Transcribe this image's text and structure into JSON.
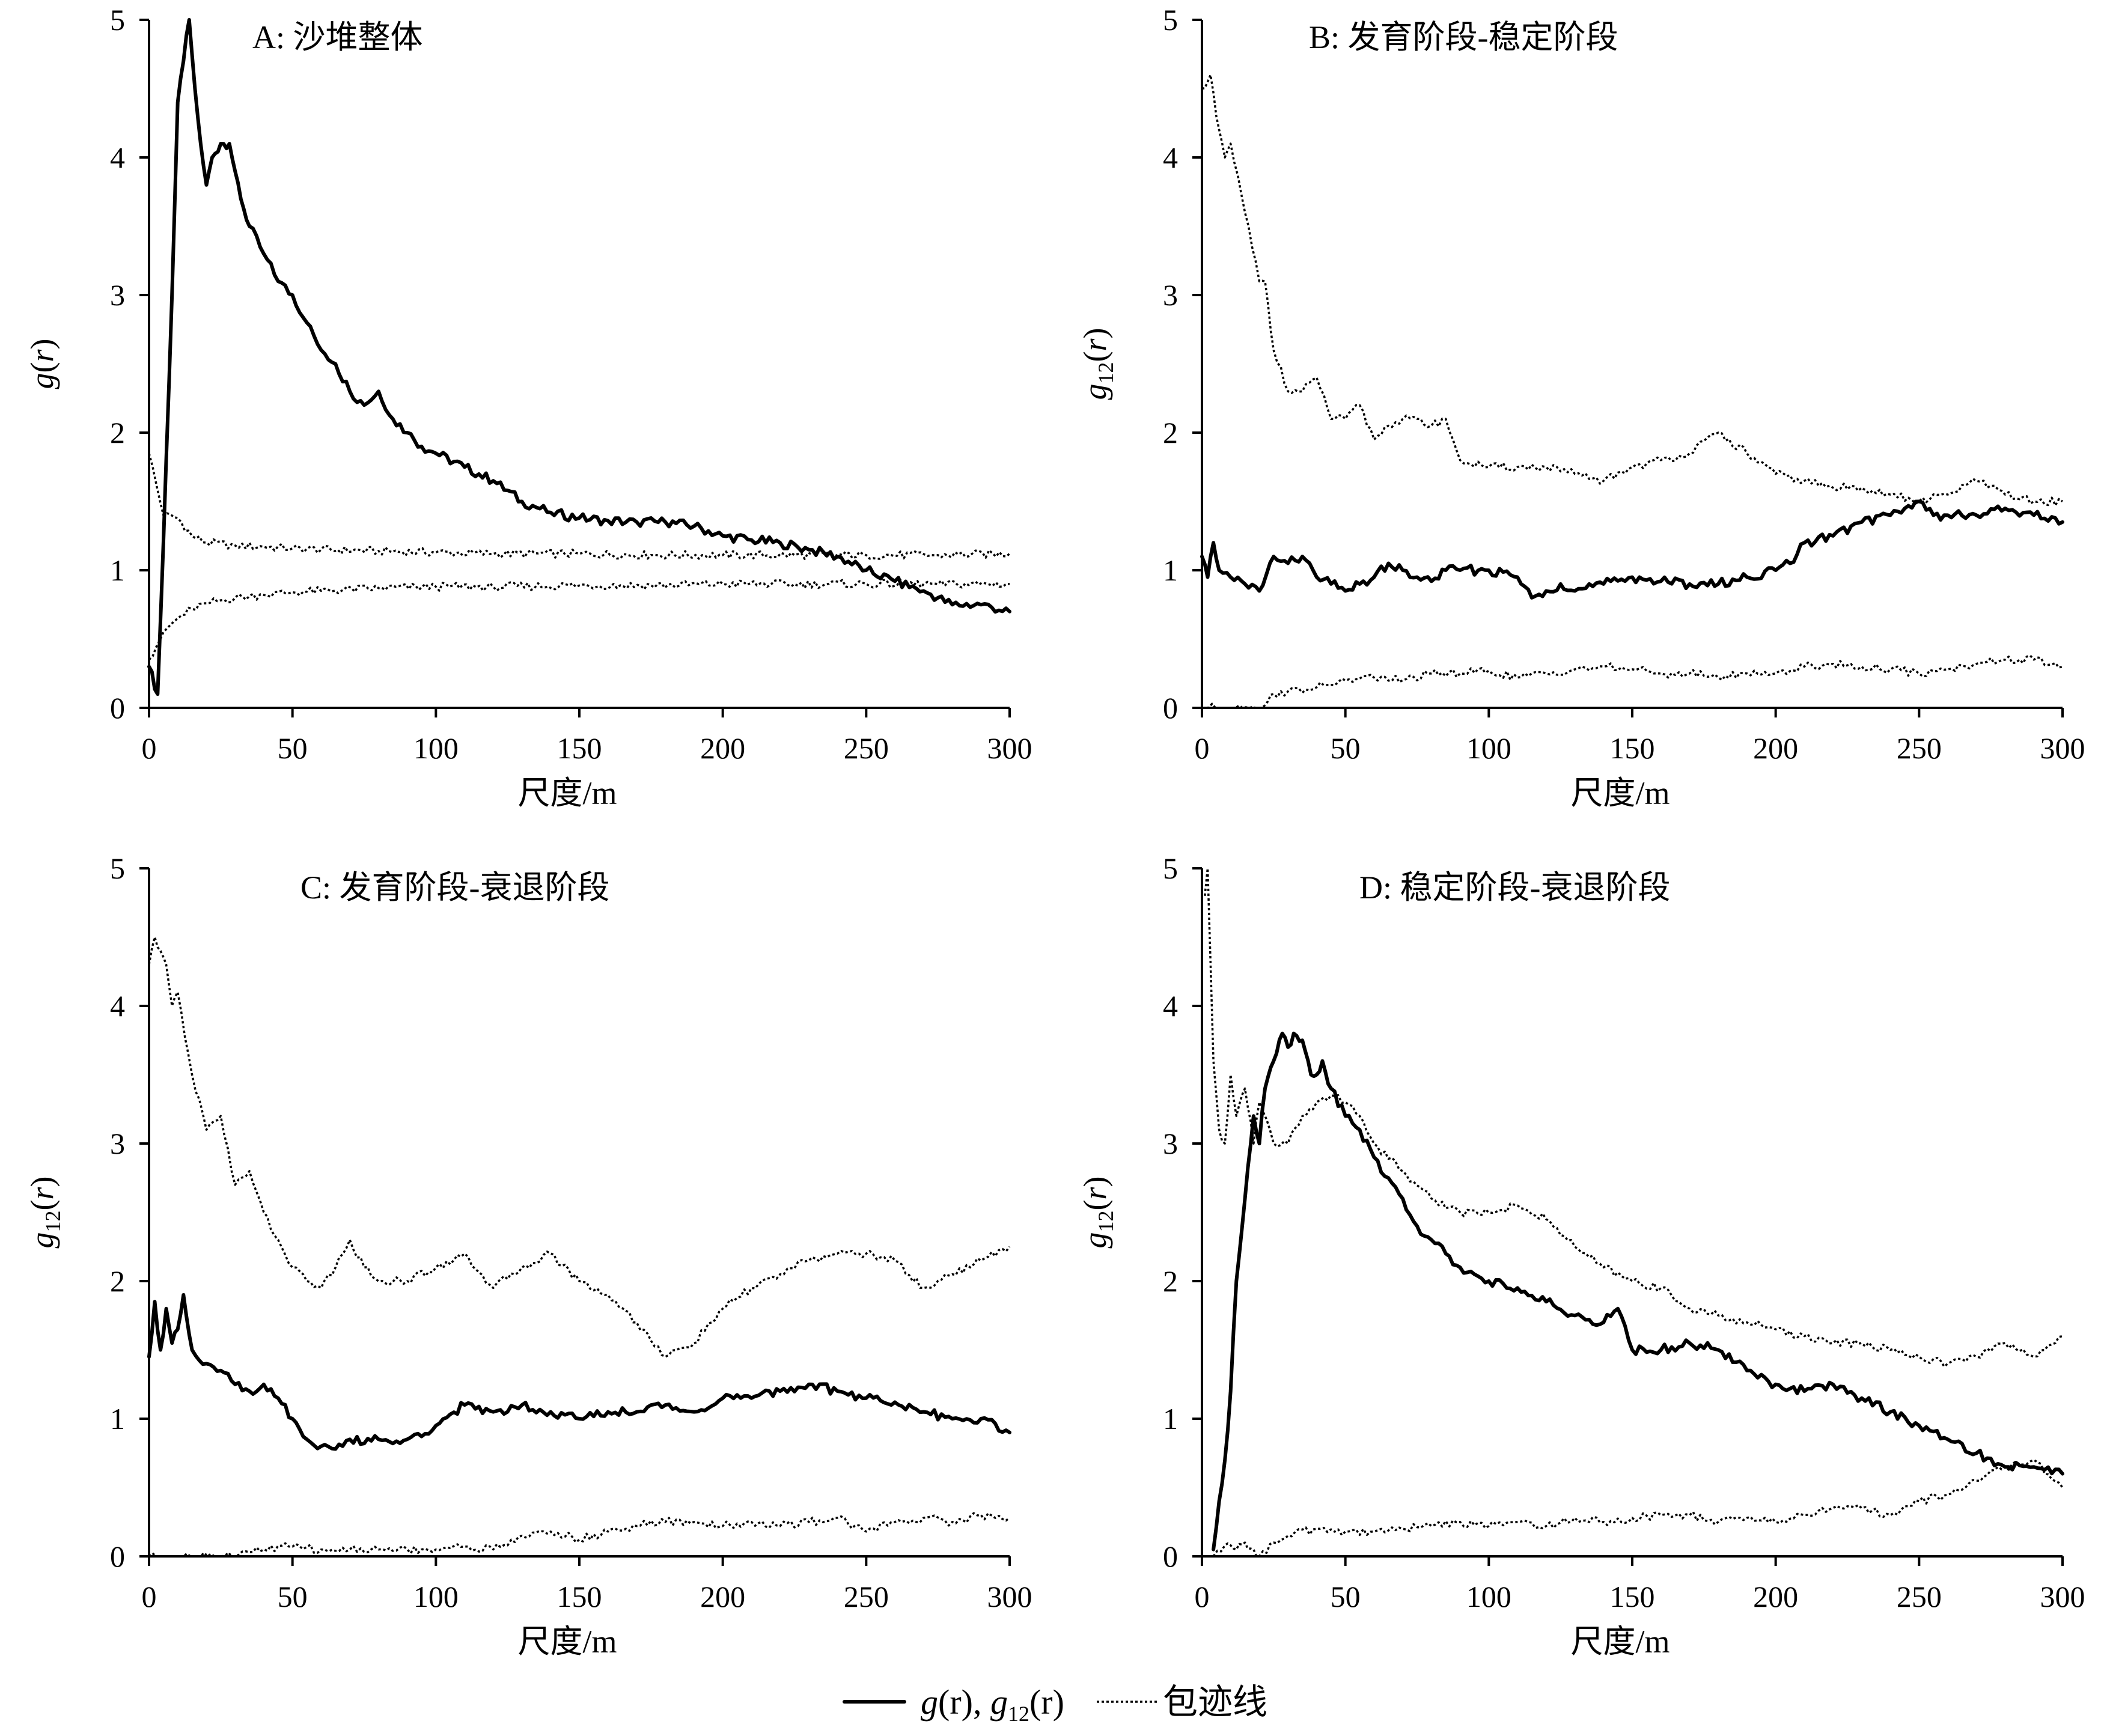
{
  "chart_data": [
    {
      "type": "line",
      "title": "A: 沙堆整体",
      "xlabel": "尺度/m",
      "ylabel": "g(r)",
      "ylabel_parts": {
        "base": "g",
        "sub": "",
        "arg": "(r)"
      },
      "xlim": [
        0,
        300
      ],
      "ylim": [
        0,
        5
      ],
      "xticks": [
        0,
        50,
        100,
        150,
        200,
        250,
        300
      ],
      "yticks": [
        0,
        1,
        2,
        3,
        4,
        5
      ],
      "series": [
        {
          "style": "solid",
          "x": [
            0,
            3,
            5,
            8,
            10,
            12,
            14,
            16,
            18,
            20,
            22,
            25,
            28,
            30,
            32,
            35,
            40,
            45,
            50,
            55,
            60,
            65,
            70,
            75,
            80,
            85,
            90,
            95,
            100,
            110,
            120,
            130,
            140,
            150,
            160,
            170,
            180,
            190,
            200,
            210,
            220,
            230,
            240,
            250,
            260,
            270,
            280,
            290,
            300
          ],
          "y": [
            0.3,
            0.1,
            1.2,
            3.0,
            4.4,
            4.7,
            5.0,
            4.5,
            4.1,
            3.8,
            4.0,
            4.1,
            4.1,
            3.9,
            3.7,
            3.5,
            3.3,
            3.1,
            3.0,
            2.8,
            2.6,
            2.5,
            2.3,
            2.2,
            2.3,
            2.1,
            2.0,
            1.9,
            1.85,
            1.75,
            1.65,
            1.5,
            1.42,
            1.38,
            1.36,
            1.35,
            1.35,
            1.32,
            1.25,
            1.22,
            1.2,
            1.15,
            1.1,
            1.0,
            0.92,
            0.85,
            0.75,
            0.75,
            0.7
          ]
        },
        {
          "style": "dotted",
          "x": [
            0,
            5,
            10,
            15,
            20,
            30,
            40,
            50,
            60,
            80,
            100,
            120,
            150,
            175,
            200,
            225,
            250,
            275,
            300
          ],
          "y": [
            1.85,
            1.4,
            1.38,
            1.25,
            1.2,
            1.18,
            1.17,
            1.16,
            1.15,
            1.14,
            1.13,
            1.12,
            1.12,
            1.11,
            1.11,
            1.11,
            1.11,
            1.11,
            1.12
          ]
        },
        {
          "style": "dotted",
          "x": [
            0,
            5,
            10,
            15,
            20,
            30,
            40,
            50,
            60,
            80,
            100,
            120,
            150,
            175,
            200,
            225,
            250,
            275,
            300
          ],
          "y": [
            0.35,
            0.55,
            0.65,
            0.72,
            0.76,
            0.8,
            0.82,
            0.84,
            0.85,
            0.87,
            0.88,
            0.88,
            0.89,
            0.89,
            0.9,
            0.9,
            0.9,
            0.9,
            0.9
          ]
        }
      ]
    },
    {
      "type": "line",
      "title": "B: 发育阶段-稳定阶段",
      "xlabel": "尺度/m",
      "ylabel": "g12(r)",
      "ylabel_parts": {
        "base": "g",
        "sub": "12",
        "arg": "(r)"
      },
      "xlim": [
        0,
        300
      ],
      "ylim": [
        0,
        5
      ],
      "xticks": [
        0,
        50,
        100,
        150,
        200,
        250,
        300
      ],
      "yticks": [
        0,
        1,
        2,
        3,
        4,
        5
      ],
      "series": [
        {
          "style": "solid",
          "x": [
            0,
            2,
            4,
            6,
            10,
            15,
            20,
            25,
            30,
            35,
            40,
            45,
            50,
            55,
            60,
            65,
            70,
            75,
            80,
            85,
            90,
            100,
            110,
            115,
            120,
            125,
            130,
            140,
            150,
            160,
            170,
            180,
            190,
            200,
            205,
            210,
            220,
            230,
            240,
            245,
            250,
            255,
            260,
            270,
            280,
            290,
            300
          ],
          "y": [
            1.1,
            0.95,
            1.2,
            1.0,
            0.95,
            0.9,
            0.85,
            1.1,
            1.05,
            1.1,
            0.95,
            0.9,
            0.85,
            0.9,
            0.95,
            1.05,
            1.0,
            0.95,
            0.92,
            1.0,
            1.0,
            1.0,
            0.95,
            0.8,
            0.85,
            0.9,
            0.85,
            0.9,
            0.95,
            0.92,
            0.9,
            0.9,
            0.95,
            1.0,
            1.05,
            1.2,
            1.25,
            1.35,
            1.4,
            1.45,
            1.5,
            1.4,
            1.4,
            1.4,
            1.45,
            1.4,
            1.35
          ]
        },
        {
          "style": "dotted",
          "x": [
            0,
            3,
            5,
            8,
            10,
            15,
            20,
            22,
            25,
            30,
            35,
            40,
            45,
            50,
            55,
            60,
            65,
            70,
            75,
            80,
            85,
            90,
            100,
            110,
            120,
            130,
            140,
            150,
            160,
            170,
            180,
            190,
            200,
            210,
            220,
            230,
            240,
            250,
            260,
            270,
            280,
            290,
            300
          ],
          "y": [
            4.5,
            4.6,
            4.3,
            4.0,
            4.1,
            3.6,
            3.1,
            3.1,
            2.6,
            2.3,
            2.3,
            2.4,
            2.1,
            2.1,
            2.2,
            1.95,
            2.05,
            2.1,
            2.1,
            2.05,
            2.1,
            1.8,
            1.75,
            1.75,
            1.75,
            1.7,
            1.65,
            1.75,
            1.8,
            1.85,
            2.0,
            1.85,
            1.7,
            1.65,
            1.6,
            1.6,
            1.55,
            1.5,
            1.55,
            1.65,
            1.55,
            1.5,
            1.5
          ]
        },
        {
          "style": "dotted",
          "x": [
            0,
            20,
            22,
            25,
            30,
            40,
            50,
            60,
            70,
            80,
            90,
            100,
            110,
            120,
            130,
            140,
            150,
            160,
            170,
            180,
            190,
            200,
            210,
            220,
            230,
            240,
            250,
            260,
            270,
            280,
            290,
            300
          ],
          "y": [
            0,
            0,
            0.02,
            0.1,
            0.12,
            0.15,
            0.2,
            0.22,
            0.2,
            0.25,
            0.25,
            0.27,
            0.22,
            0.25,
            0.28,
            0.3,
            0.28,
            0.25,
            0.25,
            0.22,
            0.25,
            0.25,
            0.3,
            0.32,
            0.3,
            0.28,
            0.25,
            0.28,
            0.32,
            0.35,
            0.35,
            0.3
          ]
        }
      ]
    },
    {
      "type": "line",
      "title": "C: 发育阶段-衰退阶段",
      "xlabel": "尺度/m",
      "ylabel": "g12(r)",
      "ylabel_parts": {
        "base": "g",
        "sub": "12",
        "arg": "(r)"
      },
      "xlim": [
        0,
        300
      ],
      "ylim": [
        0,
        5
      ],
      "xticks": [
        0,
        50,
        100,
        150,
        200,
        250,
        300
      ],
      "yticks": [
        0,
        1,
        2,
        3,
        4,
        5
      ],
      "series": [
        {
          "style": "solid",
          "x": [
            0,
            2,
            4,
            6,
            8,
            10,
            12,
            15,
            20,
            25,
            30,
            35,
            40,
            45,
            50,
            55,
            60,
            65,
            70,
            75,
            80,
            85,
            90,
            100,
            110,
            120,
            130,
            140,
            150,
            160,
            170,
            180,
            190,
            200,
            210,
            220,
            230,
            240,
            250,
            260,
            270,
            280,
            290,
            300
          ],
          "y": [
            1.45,
            1.85,
            1.5,
            1.8,
            1.55,
            1.65,
            1.9,
            1.5,
            1.4,
            1.35,
            1.25,
            1.2,
            1.25,
            1.15,
            1.0,
            0.85,
            0.8,
            0.78,
            0.85,
            0.82,
            0.85,
            0.82,
            0.85,
            0.95,
            1.1,
            1.05,
            1.1,
            1.05,
            1.0,
            1.05,
            1.05,
            1.1,
            1.05,
            1.15,
            1.15,
            1.2,
            1.25,
            1.2,
            1.15,
            1.12,
            1.05,
            1.0,
            1.0,
            0.9
          ]
        },
        {
          "style": "dotted",
          "x": [
            0,
            2,
            4,
            6,
            8,
            10,
            15,
            20,
            25,
            30,
            35,
            40,
            45,
            50,
            55,
            60,
            65,
            70,
            75,
            80,
            90,
            100,
            110,
            120,
            130,
            140,
            150,
            160,
            170,
            180,
            190,
            200,
            210,
            220,
            230,
            240,
            250,
            260,
            270,
            280,
            290,
            300
          ],
          "y": [
            4.3,
            4.5,
            4.4,
            4.3,
            4.0,
            4.1,
            3.5,
            3.1,
            3.2,
            2.7,
            2.8,
            2.5,
            2.3,
            2.1,
            2.0,
            1.95,
            2.1,
            2.3,
            2.1,
            2.0,
            2.0,
            2.1,
            2.2,
            1.95,
            2.1,
            2.2,
            2.0,
            1.9,
            1.7,
            1.45,
            1.55,
            1.8,
            1.95,
            2.05,
            2.15,
            2.2,
            2.2,
            2.15,
            1.95,
            2.05,
            2.15,
            2.25
          ]
        },
        {
          "style": "dotted",
          "x": [
            0,
            30,
            35,
            40,
            50,
            60,
            70,
            80,
            90,
            100,
            110,
            120,
            130,
            140,
            150,
            160,
            170,
            180,
            190,
            200,
            210,
            220,
            230,
            240,
            250,
            260,
            270,
            280,
            290,
            300
          ],
          "y": [
            0,
            0,
            0.03,
            0.05,
            0.07,
            0.05,
            0.05,
            0.05,
            0.05,
            0.05,
            0.07,
            0.05,
            0.15,
            0.18,
            0.12,
            0.18,
            0.22,
            0.25,
            0.25,
            0.22,
            0.25,
            0.22,
            0.25,
            0.28,
            0.18,
            0.25,
            0.28,
            0.25,
            0.3,
            0.28
          ]
        }
      ]
    },
    {
      "type": "line",
      "title": "D: 稳定阶段-衰退阶段",
      "xlabel": "尺度/m",
      "ylabel": "g12(r)",
      "ylabel_parts": {
        "base": "g",
        "sub": "12",
        "arg": "(r)"
      },
      "xlim": [
        0,
        300
      ],
      "ylim": [
        0,
        5
      ],
      "xticks": [
        0,
        50,
        100,
        150,
        200,
        250,
        300
      ],
      "yticks": [
        0,
        1,
        2,
        3,
        4,
        5
      ],
      "series": [
        {
          "style": "solid",
          "x": [
            4,
            6,
            8,
            10,
            12,
            15,
            18,
            20,
            22,
            25,
            28,
            30,
            32,
            35,
            38,
            40,
            42,
            45,
            50,
            55,
            60,
            65,
            70,
            75,
            80,
            85,
            90,
            95,
            100,
            110,
            120,
            130,
            140,
            145,
            150,
            160,
            170,
            180,
            190,
            200,
            210,
            220,
            230,
            240,
            250,
            260,
            270,
            280,
            290,
            300
          ],
          "y": [
            0.05,
            0.4,
            0.7,
            1.2,
            2.0,
            2.6,
            3.2,
            3.0,
            3.4,
            3.6,
            3.8,
            3.7,
            3.8,
            3.75,
            3.5,
            3.5,
            3.6,
            3.4,
            3.2,
            3.1,
            2.9,
            2.75,
            2.6,
            2.4,
            2.3,
            2.2,
            2.1,
            2.05,
            2.0,
            1.95,
            1.85,
            1.75,
            1.7,
            1.8,
            1.5,
            1.5,
            1.55,
            1.5,
            1.35,
            1.25,
            1.2,
            1.25,
            1.15,
            1.05,
            0.95,
            0.85,
            0.75,
            0.65,
            0.65,
            0.6
          ]
        },
        {
          "style": "dotted",
          "x": [
            1,
            2,
            4,
            6,
            8,
            10,
            12,
            15,
            18,
            20,
            25,
            30,
            35,
            40,
            45,
            50,
            55,
            60,
            70,
            80,
            90,
            100,
            110,
            120,
            130,
            140,
            150,
            160,
            170,
            180,
            190,
            200,
            210,
            220,
            230,
            240,
            250,
            260,
            270,
            280,
            290,
            300
          ],
          "y": [
            4.8,
            5.0,
            3.6,
            3.1,
            3.0,
            3.5,
            3.2,
            3.4,
            3.0,
            3.3,
            3.0,
            3.0,
            3.2,
            3.3,
            3.35,
            3.3,
            3.2,
            3.0,
            2.8,
            2.6,
            2.5,
            2.5,
            2.55,
            2.45,
            2.25,
            2.1,
            2.0,
            1.95,
            1.8,
            1.75,
            1.7,
            1.65,
            1.6,
            1.55,
            1.55,
            1.5,
            1.45,
            1.4,
            1.45,
            1.55,
            1.45,
            1.6
          ]
        },
        {
          "style": "dotted",
          "x": [
            4,
            8,
            10,
            12,
            15,
            18,
            20,
            25,
            30,
            40,
            50,
            60,
            70,
            80,
            90,
            100,
            110,
            120,
            130,
            140,
            150,
            160,
            170,
            180,
            190,
            200,
            210,
            220,
            230,
            240,
            250,
            260,
            270,
            280,
            290,
            300
          ],
          "y": [
            0,
            0.08,
            0.08,
            0.05,
            0.1,
            0.05,
            0.0,
            0.1,
            0.15,
            0.2,
            0.18,
            0.18,
            0.2,
            0.22,
            0.25,
            0.22,
            0.25,
            0.22,
            0.28,
            0.25,
            0.28,
            0.3,
            0.3,
            0.25,
            0.28,
            0.25,
            0.3,
            0.35,
            0.35,
            0.3,
            0.4,
            0.45,
            0.55,
            0.65,
            0.7,
            0.5
          ]
        }
      ]
    }
  ],
  "legend": {
    "solid_label_parts": [
      "g",
      "(r), ",
      "g",
      "12",
      "(r)"
    ],
    "dotted_label": "包迹线"
  }
}
